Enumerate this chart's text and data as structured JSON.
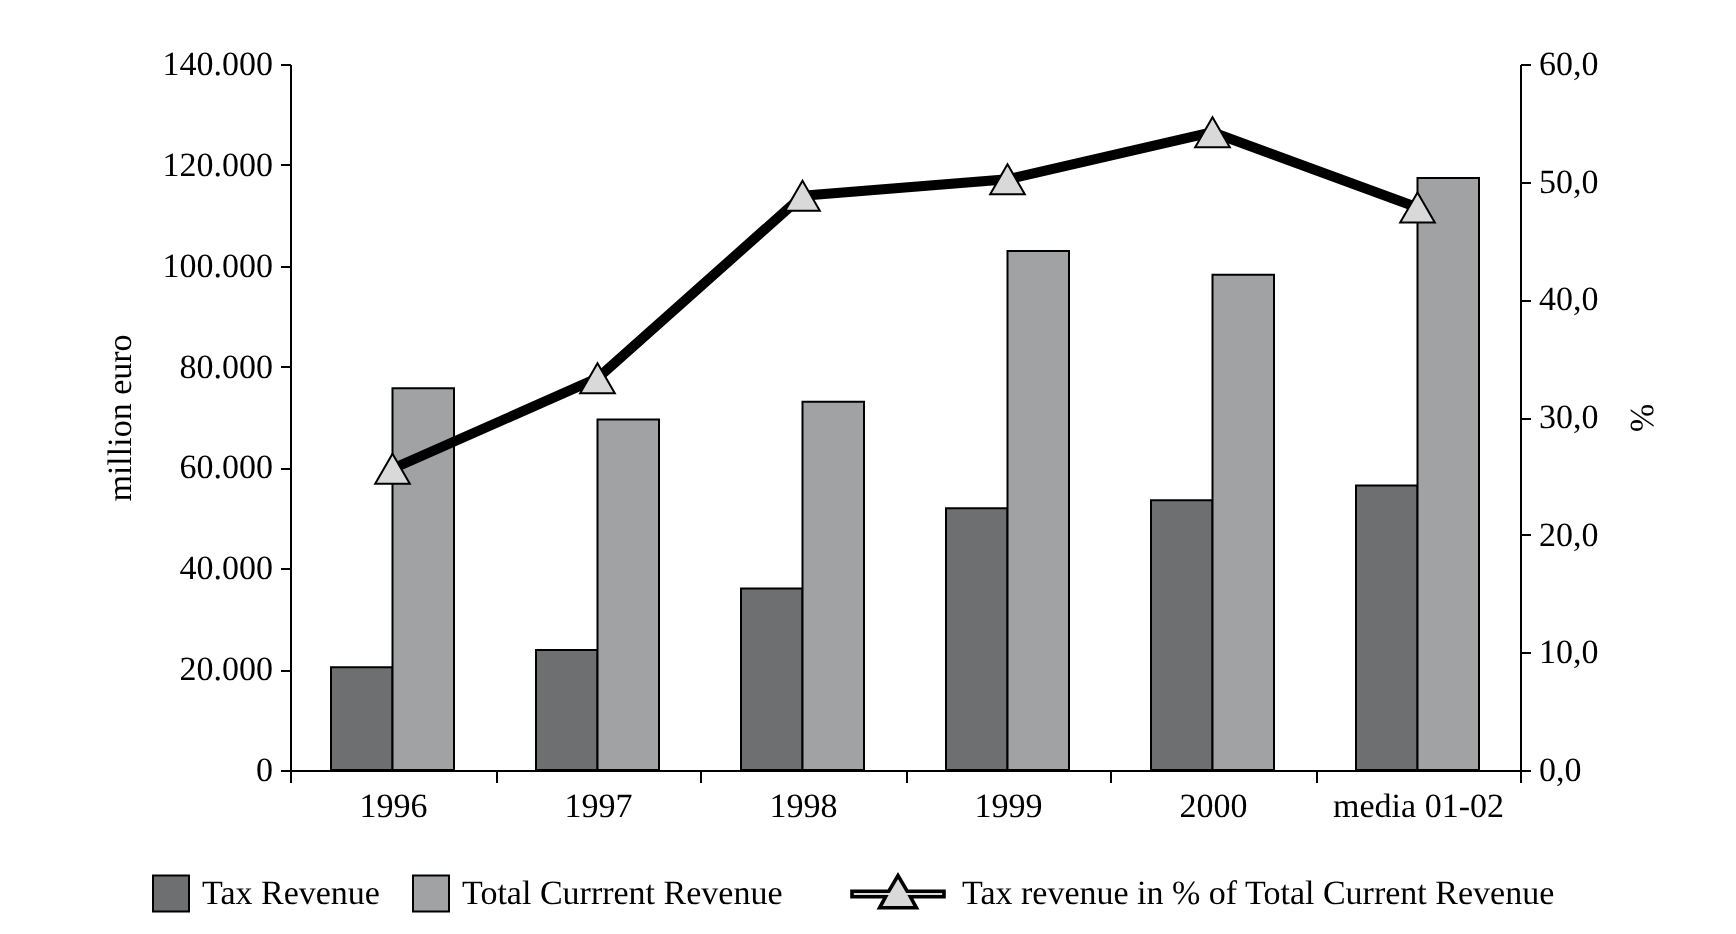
{
  "chart_data": {
    "type": "bar",
    "ylabel": "million euro",
    "y2label": "%",
    "categories": [
      "1996",
      "1997",
      "1998",
      "1999",
      "2000",
      "media 01-02"
    ],
    "series": [
      {
        "name": "Tax Revenue",
        "color": "#6e6f71",
        "values": [
          20400,
          23800,
          36000,
          51900,
          53500,
          56400
        ]
      },
      {
        "name": "Total Currrent Revenue",
        "color": "#a1a2a4",
        "values": [
          75700,
          69500,
          73000,
          102900,
          98200,
          117400
        ]
      },
      {
        "name": "Tax revenue in % of Total Current Revenue",
        "type": "line",
        "axis": "y2",
        "color": "#000000",
        "marker": "triangle",
        "line_style": "solid",
        "values": [
          25.6,
          33.3,
          48.8,
          50.2,
          54.2,
          47.8
        ]
      }
    ],
    "ylim": [
      0,
      140000
    ],
    "yticks": [
      0,
      {
        "value": 20000,
        "label": "20.000"
      },
      {
        "value": 40000,
        "label": "40.000"
      },
      {
        "value": 60000,
        "label": "60.000"
      },
      {
        "value": 80000,
        "label": "80.000"
      },
      {
        "value": 100000,
        "label": "100.000"
      },
      {
        "value": 120000,
        "label": "120.000"
      },
      {
        "value": 140000,
        "label": "140.000"
      }
    ],
    "y2lim": [
      0,
      60
    ],
    "y2ticks": [
      {
        "value": 0,
        "label": "0,0"
      },
      {
        "value": 10,
        "label": "10,0"
      },
      {
        "value": 20,
        "label": "20,0"
      },
      {
        "value": 30,
        "label": "30,0"
      },
      {
        "value": 40,
        "label": "40,0"
      },
      {
        "value": 50,
        "label": "50,0"
      },
      {
        "value": 60,
        "label": "60,0"
      }
    ],
    "grid": false,
    "legend": "bottom"
  }
}
